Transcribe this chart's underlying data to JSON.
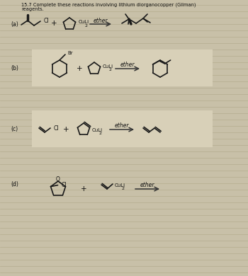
{
  "title_line1": "15.7 Complete these reactions involving lithium diorganocopper (Gilman)",
  "title_line2": "reagents.",
  "bg_color": "#c8c0a8",
  "panel_color": "#d8d0b8",
  "line_color": "#1a1a1a",
  "text_color": "#111111",
  "fig_width": 3.5,
  "fig_height": 3.9,
  "dpi": 100,
  "arrow_color": "#333333",
  "solvent": "ether"
}
